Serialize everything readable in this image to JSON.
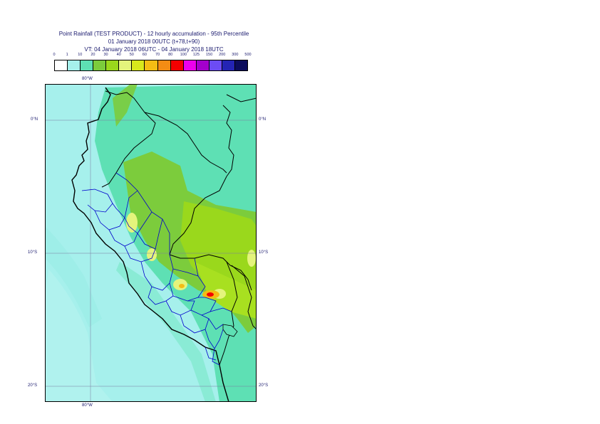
{
  "title": {
    "line1": "Point Rainfall (TEST PRODUCT) - 12 hourly accumulation - 95th Percentile",
    "line2": "01 January 2018 00UTC (t+78,t+90)",
    "line3": "VT: 04 January 2018 06UTC - 04 January 2018 18UTC"
  },
  "legend": {
    "ticks": [
      "0",
      "1",
      "10",
      "20",
      "30",
      "40",
      "50",
      "60",
      "70",
      "80",
      "100",
      "125",
      "150",
      "200",
      "300",
      "500"
    ],
    "colors": [
      "#ffffff",
      "#a6f0ec",
      "#5ee0b4",
      "#7ccc3c",
      "#9ad81c",
      "#e4f47c",
      "#d8e81c",
      "#f4bc14",
      "#f48c14",
      "#f40000",
      "#ec00ec",
      "#a400cc",
      "#6c4cf4",
      "#2424b4",
      "#0c0c5c"
    ]
  },
  "map": {
    "lon_labels": {
      "top": "80°W",
      "bottom": "80°W"
    },
    "lat_labels": [
      "0°N",
      "10°S",
      "20°S"
    ],
    "colors": {
      "ocean_light": "#a6f0ec",
      "land_teal": "#5ee0b4",
      "green": "#7ccc3c",
      "yellow_green": "#9ad81c",
      "pale_yellow": "#e4f47c",
      "orange": "#f4bc14",
      "red": "#f40000",
      "country_border": "#000000",
      "region_border": "#0000cc"
    }
  }
}
